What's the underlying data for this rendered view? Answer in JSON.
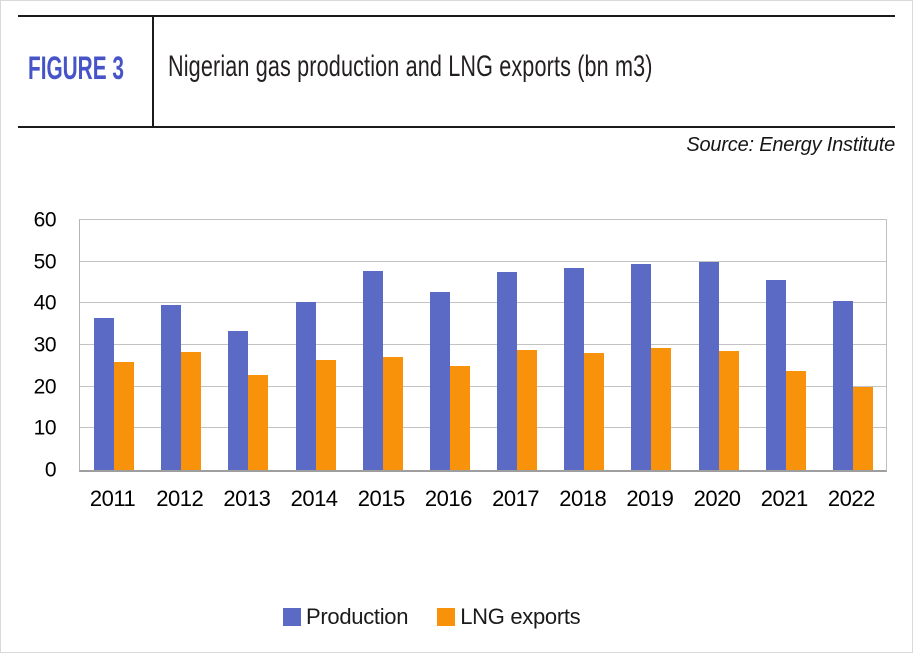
{
  "header": {
    "figure_label": "FIGURE 3",
    "title": "Nigerian gas production and LNG exports (bn m3)",
    "source": "Source: Energy Institute"
  },
  "colors": {
    "figure_label_blue": "#4754C8",
    "rule_black": "#1b1b1b",
    "gridline_gray": "#c3c3c3",
    "production_blue": "#5B6AC4",
    "lng_orange": "#F8920B"
  },
  "chart_data": {
    "type": "bar",
    "title": "Nigerian gas production and LNG exports (bn m3)",
    "categories": [
      "2011",
      "2012",
      "2013",
      "2014",
      "2015",
      "2016",
      "2017",
      "2018",
      "2019",
      "2020",
      "2021",
      "2022"
    ],
    "series": [
      {
        "name": "Production",
        "color": "#5B6AC4",
        "values": [
          36.6,
          39.5,
          33.4,
          40.4,
          47.8,
          42.8,
          47.5,
          48.6,
          49.5,
          49.9,
          45.5,
          40.6
        ]
      },
      {
        "name": "LNG exports",
        "color": "#F8920B",
        "values": [
          25.9,
          28.3,
          22.7,
          26.3,
          27.2,
          24.9,
          28.7,
          28.0,
          29.2,
          28.6,
          23.8,
          20.0
        ]
      }
    ],
    "xlabel": "",
    "ylabel": "",
    "ylim": [
      0,
      60
    ],
    "yticks": [
      0,
      10,
      20,
      30,
      40,
      50,
      60
    ],
    "grid": true,
    "legend_position": "bottom"
  }
}
